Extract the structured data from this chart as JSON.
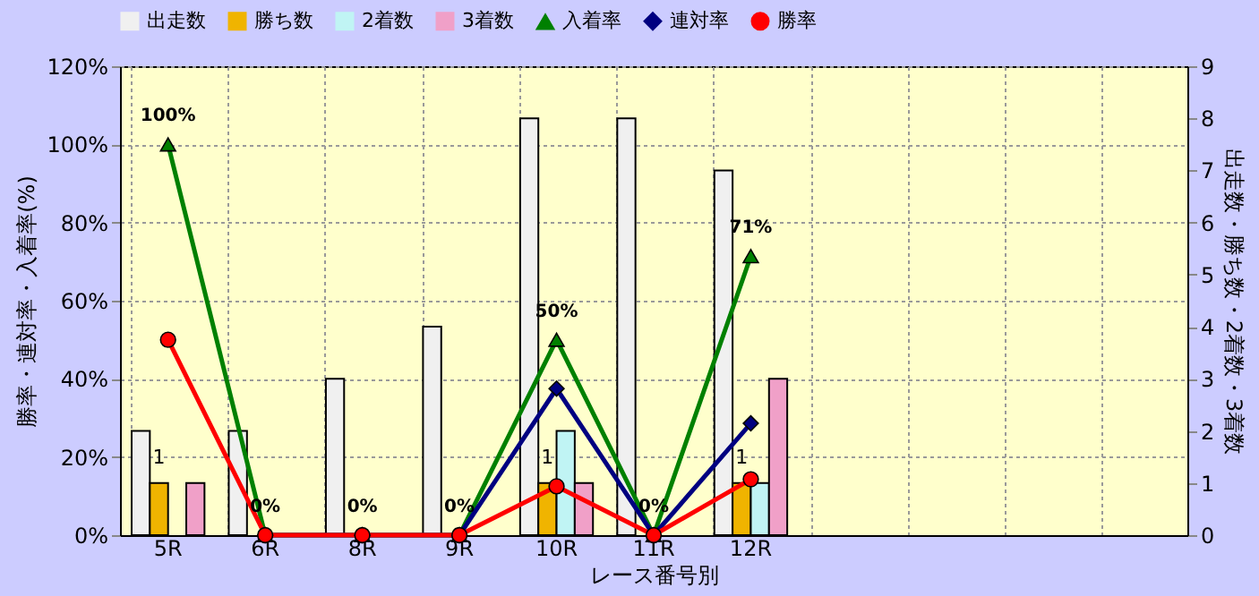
{
  "chart_data": {
    "type": "bar",
    "xlabel": "レース番号別",
    "ylabel": "勝率・連対率・入着率(%)",
    "y2label": "出走数・勝ち数・2着数・3着数",
    "categories": [
      "5R",
      "6R",
      "8R",
      "9R",
      "10R",
      "11R",
      "12R",
      null,
      null,
      null,
      null
    ],
    "series": [
      {
        "name": "出走数",
        "type": "bar",
        "axis": "y2",
        "color": "#f0f0f0",
        "values": [
          2,
          2,
          3,
          4,
          8,
          8,
          7,
          null,
          null,
          null,
          null
        ]
      },
      {
        "name": "勝ち数",
        "type": "bar",
        "axis": "y2",
        "color": "#f0b400",
        "values": [
          1,
          0,
          0,
          0,
          1,
          0,
          1,
          null,
          null,
          null,
          null
        ],
        "value_labels": [
          "1",
          null,
          null,
          null,
          "1",
          null,
          "1",
          null,
          null,
          null,
          null
        ]
      },
      {
        "name": "2着数",
        "type": "bar",
        "axis": "y2",
        "color": "#c0f4f4",
        "values": [
          0,
          0,
          0,
          0,
          2,
          0,
          1,
          null,
          null,
          null,
          null
        ]
      },
      {
        "name": "3着数",
        "type": "bar",
        "axis": "y2",
        "color": "#f0a0c8",
        "values": [
          1,
          0,
          0,
          0,
          1,
          0,
          3,
          null,
          null,
          null,
          null
        ]
      },
      {
        "name": "入着率",
        "type": "line",
        "axis": "y",
        "color": "#008000",
        "marker": "triangle",
        "values": [
          100,
          0,
          0,
          0,
          50,
          0,
          71.4,
          null,
          null,
          null,
          null
        ],
        "value_labels": [
          "100%",
          "0%",
          "0%",
          "0%",
          "50%",
          "0%",
          "71%",
          null,
          null,
          null,
          null
        ]
      },
      {
        "name": "連対率",
        "type": "line",
        "axis": "y",
        "color": "#000080",
        "marker": "diamond",
        "values": [
          null,
          0,
          0,
          0,
          37.5,
          0,
          28.6,
          null,
          null,
          null,
          null
        ]
      },
      {
        "name": "勝率",
        "type": "line",
        "axis": "y",
        "color": "#ff0000",
        "marker": "circle",
        "values": [
          50,
          0,
          0,
          0,
          12.5,
          0,
          14.3,
          null,
          null,
          null,
          null
        ]
      }
    ],
    "ylim": [
      0,
      120
    ],
    "yticks": [
      {
        "value": 0,
        "label": "0%"
      },
      {
        "value": 20,
        "label": "20%"
      },
      {
        "value": 40,
        "label": "40%"
      },
      {
        "value": 60,
        "label": "60%"
      },
      {
        "value": 80,
        "label": "80%"
      },
      {
        "value": 100,
        "label": "100%"
      },
      {
        "value": 120,
        "label": "120%"
      }
    ],
    "y2lim": [
      0,
      9
    ],
    "y2ticks": [
      0,
      1,
      2,
      3,
      4,
      5,
      6,
      7,
      8,
      9
    ],
    "grid": true,
    "legend": "top",
    "line_style": "solid"
  }
}
